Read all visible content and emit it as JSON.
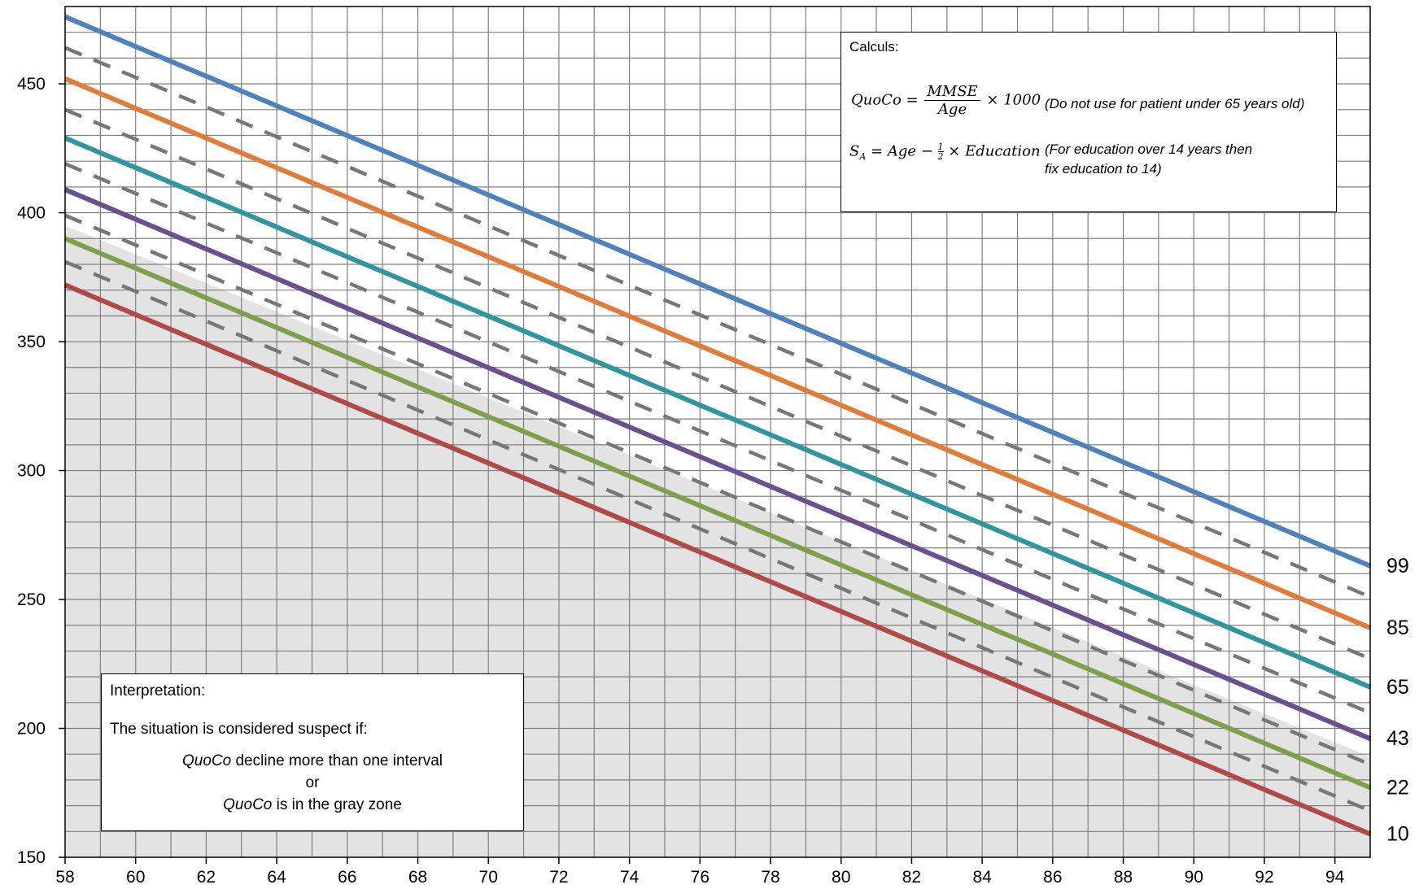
{
  "chart_data": {
    "type": "line",
    "title": "",
    "xlabel": "",
    "ylabel": "",
    "xlim": [
      58,
      95
    ],
    "ylim": [
      150,
      480
    ],
    "x_ticks": [
      58,
      60,
      62,
      64,
      66,
      68,
      70,
      72,
      74,
      76,
      78,
      80,
      82,
      84,
      86,
      88,
      90,
      92,
      94
    ],
    "y_ticks": [
      150,
      200,
      250,
      300,
      350,
      400,
      450
    ],
    "grid": true,
    "gray_zone_boundary": {
      "x": [
        58,
        95
      ],
      "y": [
        395,
        189
      ]
    },
    "series": [
      {
        "name": "99",
        "color": "#4f81bd",
        "style": "solid",
        "x": [
          58,
          95
        ],
        "y": [
          476,
          263
        ]
      },
      {
        "name": "85",
        "color": "#e07b39",
        "style": "solid",
        "x": [
          58,
          95
        ],
        "y": [
          452,
          239
        ]
      },
      {
        "name": "65",
        "color": "#31959d",
        "style": "solid",
        "x": [
          58,
          95
        ],
        "y": [
          429,
          216
        ]
      },
      {
        "name": "43",
        "color": "#6b4f8f",
        "style": "solid",
        "x": [
          58,
          95
        ],
        "y": [
          409,
          196
        ]
      },
      {
        "name": "22",
        "color": "#7ea04c",
        "style": "solid",
        "x": [
          58,
          95
        ],
        "y": [
          390,
          177
        ]
      },
      {
        "name": "10",
        "color": "#b04a45",
        "style": "solid",
        "x": [
          58,
          95
        ],
        "y": [
          372,
          159
        ]
      }
    ],
    "dashed_lines": [
      {
        "color": "#777777",
        "x": [
          58,
          95
        ],
        "y": [
          464,
          251
        ]
      },
      {
        "color": "#777777",
        "x": [
          58,
          95
        ],
        "y": [
          440,
          227
        ]
      },
      {
        "color": "#777777",
        "x": [
          58,
          95
        ],
        "y": [
          419,
          206
        ]
      },
      {
        "color": "#777777",
        "x": [
          58,
          95
        ],
        "y": [
          399,
          186
        ]
      },
      {
        "color": "#777777",
        "x": [
          58,
          95
        ],
        "y": [
          381,
          168
        ]
      }
    ]
  },
  "calc_box": {
    "title": "Calculs:",
    "quoco_lhs": "QuoCo =",
    "quoco_num": "MMSE",
    "quoco_den": "Age",
    "quoco_tail": "× 1000",
    "quoco_note": "(Do not use for patient under 65 years old)",
    "sa_lhs": "S",
    "sa_sub": "A",
    "sa_mid": "= Age −",
    "sa_frac_num": "1",
    "sa_frac_den": "2",
    "sa_tail": "× Education",
    "sa_note_1": "(For education over 14 years then",
    "sa_note_2": "fix education to 14)"
  },
  "interp_box": {
    "title": "Interpretation:",
    "intro": "The situation is considered suspect if:",
    "line1_em": "QuoCo",
    "line1_rest": " decline more than one interval",
    "line2": "or",
    "line3_em": "QuoCo",
    "line3_rest": " is in the gray zone"
  },
  "colors": {
    "grid": "#7f7f7f",
    "gray_zone": "#e3e3e3"
  }
}
